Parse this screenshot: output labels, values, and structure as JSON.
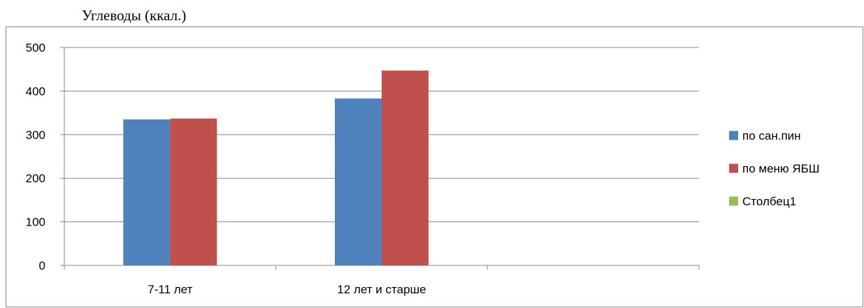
{
  "title": "Углеводы (ккал.)",
  "chart_data": {
    "type": "bar",
    "title": "Углеводы (ккал.)",
    "categories": [
      "7-11 лет",
      "12 лет и старше",
      ""
    ],
    "series": [
      {
        "name": "по сан.пин",
        "color": "#4f81bd",
        "values": [
          335,
          383,
          null
        ]
      },
      {
        "name": "по меню ЯБШ",
        "color": "#c0504d",
        "values": [
          337,
          447,
          null
        ]
      },
      {
        "name": "Столбец1",
        "color": "#9bbb59",
        "values": [
          null,
          null,
          null
        ]
      }
    ],
    "ylim": [
      0,
      500
    ],
    "yticks": [
      0,
      100,
      200,
      300,
      400,
      500
    ],
    "grid": true,
    "legend": "right"
  }
}
